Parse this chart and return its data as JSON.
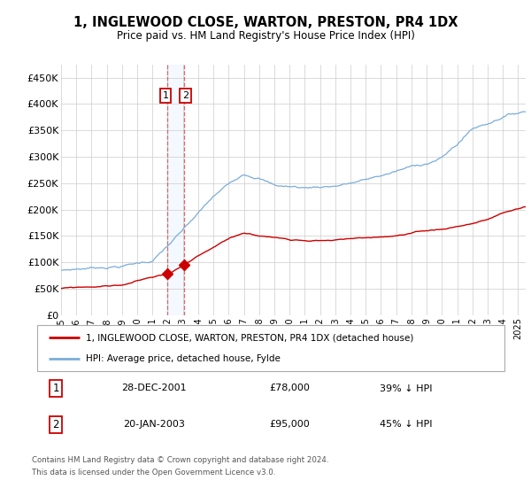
{
  "title": "1, INGLEWOOD CLOSE, WARTON, PRESTON, PR4 1DX",
  "subtitle": "Price paid vs. HM Land Registry's House Price Index (HPI)",
  "footer1": "Contains HM Land Registry data © Crown copyright and database right 2024.",
  "footer2": "This data is licensed under the Open Government Licence v3.0.",
  "legend_line1": "1, INGLEWOOD CLOSE, WARTON, PRESTON, PR4 1DX (detached house)",
  "legend_line2": "HPI: Average price, detached house, Fylde",
  "sale1_date": "28-DEC-2001",
  "sale1_price": "£78,000",
  "sale1_hpi": "39% ↓ HPI",
  "sale2_date": "20-JAN-2003",
  "sale2_price": "£95,000",
  "sale2_hpi": "45% ↓ HPI",
  "red_color": "#cc0000",
  "blue_color": "#7aadda",
  "sale_dot_color": "#cc0000",
  "vline_color": "#dd4444",
  "vband_color": "#ddeeff",
  "grid_color": "#cccccc",
  "background_color": "#ffffff",
  "ylim_min": 0,
  "ylim_max": 475000,
  "yticks": [
    0,
    50000,
    100000,
    150000,
    200000,
    250000,
    300000,
    350000,
    400000,
    450000
  ],
  "ytick_labels": [
    "£0",
    "£50K",
    "£100K",
    "£150K",
    "£200K",
    "£250K",
    "£300K",
    "£350K",
    "£400K",
    "£450K"
  ],
  "sale1_x": 2001.97,
  "sale2_x": 2003.05,
  "sale1_y": 78000,
  "sale2_y": 95000,
  "xmin": 1995.0,
  "xmax": 2025.5,
  "xtick_years": [
    1995,
    1996,
    1997,
    1998,
    1999,
    2000,
    2001,
    2002,
    2003,
    2004,
    2005,
    2006,
    2007,
    2008,
    2009,
    2010,
    2011,
    2012,
    2013,
    2014,
    2015,
    2016,
    2017,
    2018,
    2019,
    2020,
    2021,
    2022,
    2023,
    2024,
    2025
  ]
}
